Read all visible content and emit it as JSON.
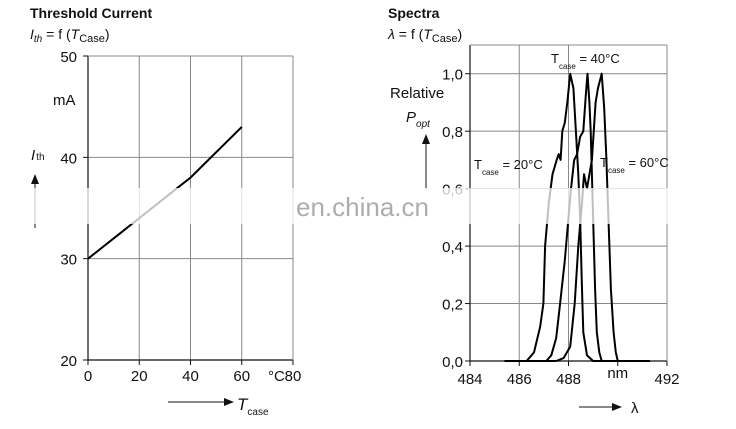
{
  "watermark": "en.china.cn",
  "chart_data": [
    {
      "type": "line",
      "title": "Threshold Current",
      "formula": {
        "lhs": "I",
        "lhs_sub": "th",
        "mid": " = f (",
        "var": "T",
        "var_sub": "Case",
        "end": ")"
      },
      "xlabel": {
        "main": "T",
        "sub": "case"
      },
      "xunit": "°C",
      "ylabel": {
        "main": "I",
        "sub": "th"
      },
      "yunit": "mA",
      "xlim": [
        0,
        80
      ],
      "ylim": [
        20,
        50
      ],
      "xticks": [
        0,
        20,
        40,
        60,
        80
      ],
      "yticks": [
        20,
        30,
        40,
        50
      ],
      "grid": true,
      "series": [
        {
          "x": [
            0,
            20,
            35,
            40,
            60
          ],
          "y": [
            30,
            34,
            37,
            38,
            43
          ]
        }
      ]
    },
    {
      "type": "line",
      "title": "Spectra",
      "formula": {
        "lhs": "λ",
        "mid": " = f (",
        "var": "T",
        "var_sub": "Case",
        "end": ")"
      },
      "xlabel": {
        "main": "λ"
      },
      "xunit": "nm",
      "ylabel": {
        "line1": "Relative",
        "main": "P",
        "sub": "opt"
      },
      "xlim": [
        484,
        492
      ],
      "ylim": [
        0,
        1.1
      ],
      "xticks": [
        "484",
        "486",
        "488",
        "nm",
        "492"
      ],
      "yticks": [
        "0,0",
        "0,2",
        "0,4",
        "0,6",
        "0,8",
        "1,0"
      ],
      "xgrid": [
        486,
        488
      ],
      "ygrid": [
        0.2,
        0.4,
        0.6,
        0.8,
        1.0
      ],
      "annotations": [
        {
          "main": "T",
          "sub": "case",
          "text": " = 20°C"
        },
        {
          "main": "T",
          "sub": "case",
          "text": " = 40°C"
        },
        {
          "main": "T",
          "sub": "case",
          "text": " = 60°C"
        }
      ],
      "series": [
        {
          "name": "T case = 20°C",
          "x": [
            485.4,
            486.3,
            486.6,
            486.85,
            486.98,
            487.05,
            487.2,
            487.35,
            487.52,
            487.6,
            487.68,
            487.75,
            487.85,
            487.95,
            488.07,
            488.2,
            488.3,
            488.4,
            488.47,
            488.55,
            488.6,
            488.75,
            489.0,
            491.3
          ],
          "y": [
            0,
            0,
            0.03,
            0.12,
            0.2,
            0.4,
            0.55,
            0.65,
            0.7,
            0.72,
            0.7,
            0.8,
            0.83,
            0.9,
            1.0,
            0.95,
            0.8,
            0.65,
            0.5,
            0.25,
            0.1,
            0.02,
            0,
            0
          ]
        },
        {
          "name": "T case = 40°C",
          "x": [
            485.4,
            487.1,
            487.3,
            487.5,
            487.66,
            487.85,
            488.0,
            488.1,
            488.23,
            488.35,
            488.47,
            488.6,
            488.7,
            488.77,
            488.85,
            488.9,
            489.0,
            489.08,
            489.15,
            489.25,
            489.35,
            491.3
          ],
          "y": [
            0,
            0,
            0.02,
            0.08,
            0.2,
            0.35,
            0.5,
            0.6,
            0.7,
            0.72,
            0.78,
            0.8,
            0.92,
            1.0,
            0.9,
            0.8,
            0.5,
            0.25,
            0.1,
            0.03,
            0,
            0
          ]
        },
        {
          "name": "T case = 60°C",
          "x": [
            485.4,
            487.5,
            487.8,
            488.07,
            488.25,
            488.4,
            488.55,
            488.63,
            488.75,
            488.95,
            489.1,
            489.2,
            489.35,
            489.45,
            489.53,
            489.62,
            489.72,
            489.83,
            489.92,
            490.0,
            491.3
          ],
          "y": [
            0,
            0,
            0.01,
            0.05,
            0.2,
            0.4,
            0.55,
            0.65,
            0.6,
            0.7,
            0.9,
            0.95,
            1.0,
            0.88,
            0.72,
            0.5,
            0.25,
            0.1,
            0.03,
            0,
            0
          ]
        }
      ]
    }
  ]
}
